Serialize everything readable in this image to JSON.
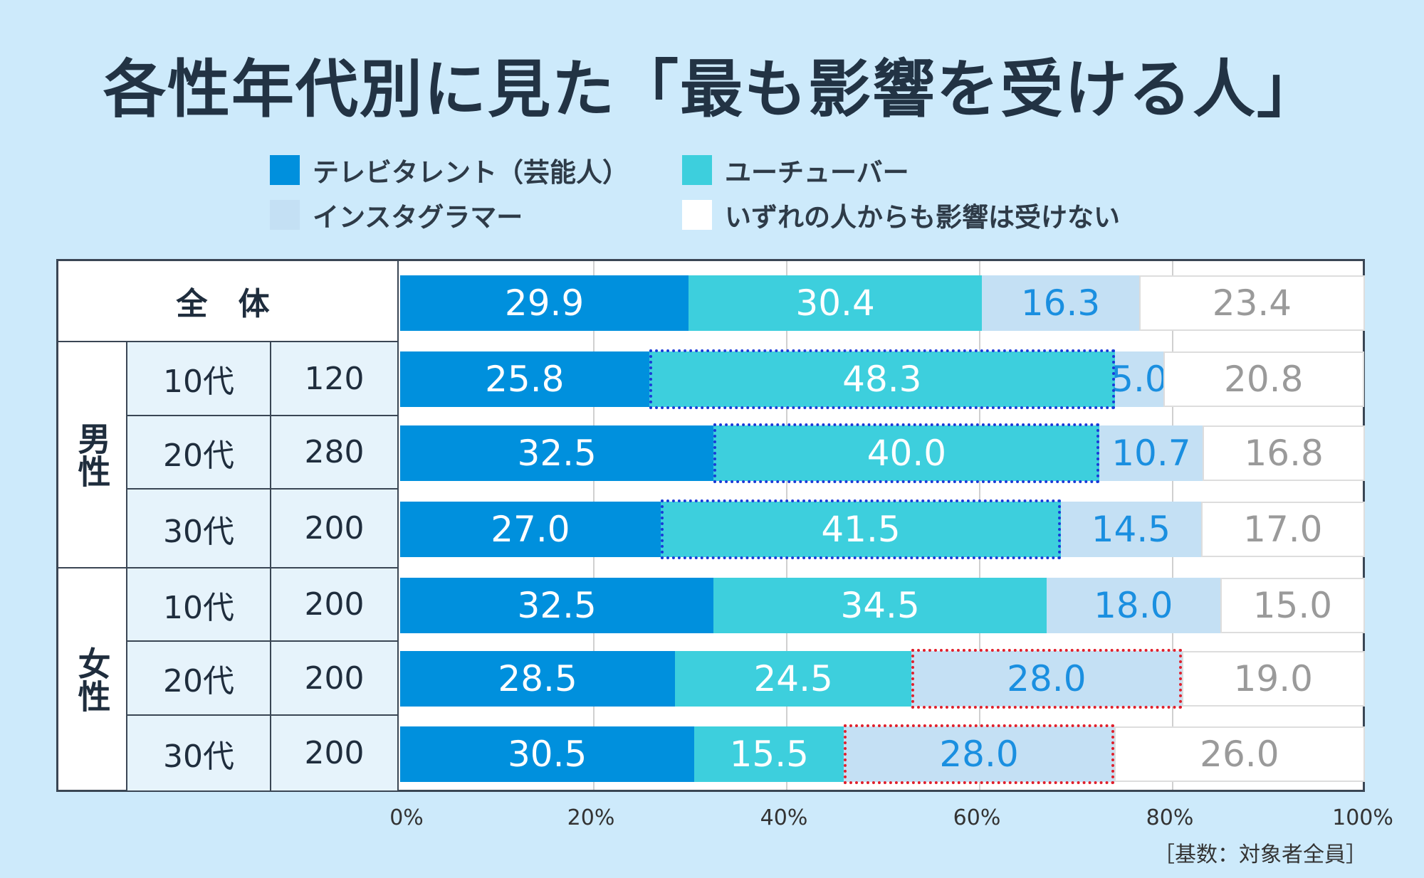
{
  "chart_data": {
    "type": "bar",
    "orientation": "horizontal",
    "stacked": true,
    "title": "各性年代別に見た「最も影響を受ける人」",
    "legend": {
      "placement": "top",
      "entries": [
        "テレビタレント（芸能人）",
        "ユーチューバー",
        "インスタグラマー",
        "いずれの人からも影響は受けない"
      ]
    },
    "colors": [
      "#0090dd",
      "#3dcfdd",
      "#c4e0f4",
      "#ffffff"
    ],
    "label_colors": [
      "#ffffff",
      "#ffffff",
      "#1a8fe0",
      "#9a9a9a"
    ],
    "categories": [
      {
        "group": "全 体",
        "age": "",
        "n": ""
      },
      {
        "group": "男性",
        "age": "10代",
        "n": "120"
      },
      {
        "group": "男性",
        "age": "20代",
        "n": "280"
      },
      {
        "group": "男性",
        "age": "30代",
        "n": "200"
      },
      {
        "group": "女性",
        "age": "10代",
        "n": "200"
      },
      {
        "group": "女性",
        "age": "20代",
        "n": "200"
      },
      {
        "group": "女性",
        "age": "30代",
        "n": "200"
      }
    ],
    "series": [
      {
        "name": "テレビタレント（芸能人）",
        "values": [
          29.9,
          25.8,
          32.5,
          27.0,
          32.5,
          28.5,
          30.5
        ]
      },
      {
        "name": "ユーチューバー",
        "values": [
          30.4,
          48.3,
          40.0,
          41.5,
          34.5,
          24.5,
          15.5
        ]
      },
      {
        "name": "インスタグラマー",
        "values": [
          16.3,
          5.0,
          10.7,
          14.5,
          18.0,
          28.0,
          28.0
        ]
      },
      {
        "name": "いずれの人からも影響は受けない",
        "values": [
          23.4,
          20.8,
          16.8,
          17.0,
          15.0,
          19.0,
          26.0
        ]
      }
    ],
    "highlights": [
      {
        "row": 1,
        "series": 1,
        "color": "#1a3ad8"
      },
      {
        "row": 2,
        "series": 1,
        "color": "#1a3ad8"
      },
      {
        "row": 3,
        "series": 1,
        "color": "#1a3ad8"
      },
      {
        "row": 5,
        "series": 2,
        "color": "#e0202c"
      },
      {
        "row": 6,
        "series": 2,
        "color": "#e0202c"
      }
    ],
    "xlim": [
      0,
      100
    ],
    "xticks": [
      "0%",
      "20%",
      "40%",
      "60%",
      "80%",
      "100%"
    ],
    "grid": true,
    "note": "［基数：対象者全員］"
  }
}
